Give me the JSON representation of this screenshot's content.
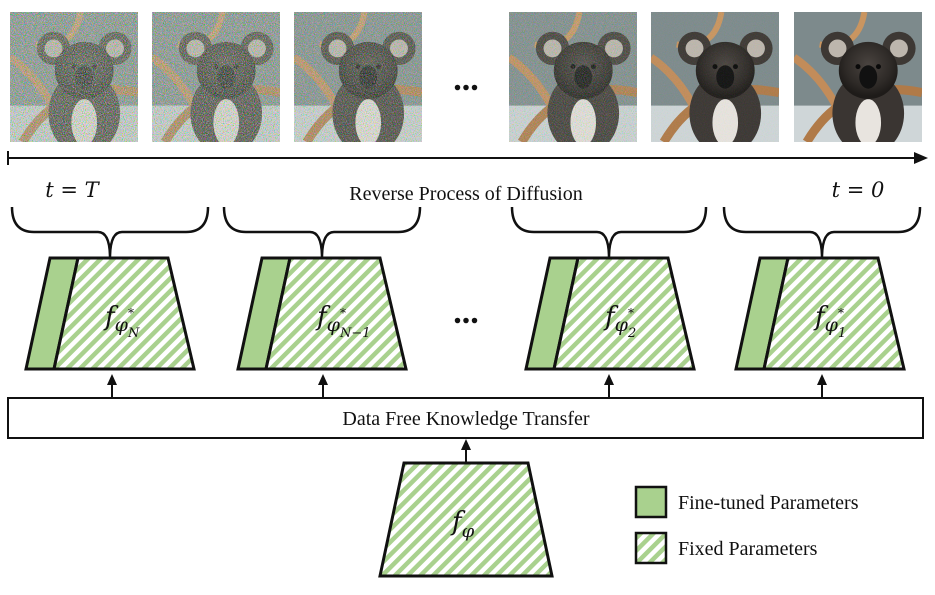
{
  "timeline": {
    "start_label": "t = T",
    "end_label": "t = 0",
    "process_label": "Reverse Process of Diffusion"
  },
  "ellipsis": "...",
  "transfer_label": "Data Free Knowledge Transfer",
  "students": [
    {
      "base": "f",
      "sub": "φ",
      "sup": "*",
      "subsub": "N"
    },
    {
      "base": "f",
      "sub": "φ",
      "sup": "*",
      "subsub": "N−1"
    },
    {
      "base": "f",
      "sub": "φ",
      "sup": "*",
      "subsub": "2"
    },
    {
      "base": "f",
      "sub": "φ",
      "sup": "*",
      "subsub": "1"
    }
  ],
  "teacher": {
    "base": "f",
    "sub": "φ"
  },
  "legend": {
    "fine_tuned": "Fine-tuned Parameters",
    "fixed": "Fixed Parameters"
  },
  "colors": {
    "fine_tuned": "#a9d18e",
    "stripe": "#a9d18e",
    "outline": "#111111"
  },
  "images": [
    {
      "noise_level": 1.0
    },
    {
      "noise_level": 0.95
    },
    {
      "noise_level": 0.75
    },
    {
      "noise_level": 0.45
    },
    {
      "noise_level": 0.1
    },
    {
      "noise_level": 0.0
    }
  ]
}
